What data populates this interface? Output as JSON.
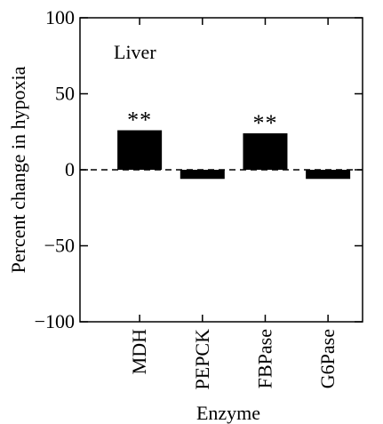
{
  "chart_data": {
    "type": "bar",
    "categories": [
      "MDH",
      "PEPCK",
      "FBPase",
      "G6Pase"
    ],
    "values": [
      26,
      -6,
      24,
      -6
    ],
    "annotations": [
      "**",
      "",
      "**",
      ""
    ],
    "panel_label": "Liver",
    "xlabel": "Enzyme",
    "ylabel": "Percent change in hypoxia",
    "ylim": [
      -100,
      100
    ],
    "yticks": [
      100,
      50,
      0,
      -50,
      -100
    ],
    "ytick_labels": [
      "100",
      "50",
      "0",
      "−50",
      "−100"
    ],
    "zero_line": "dashed",
    "grid": false,
    "bar_color": "#000000"
  }
}
